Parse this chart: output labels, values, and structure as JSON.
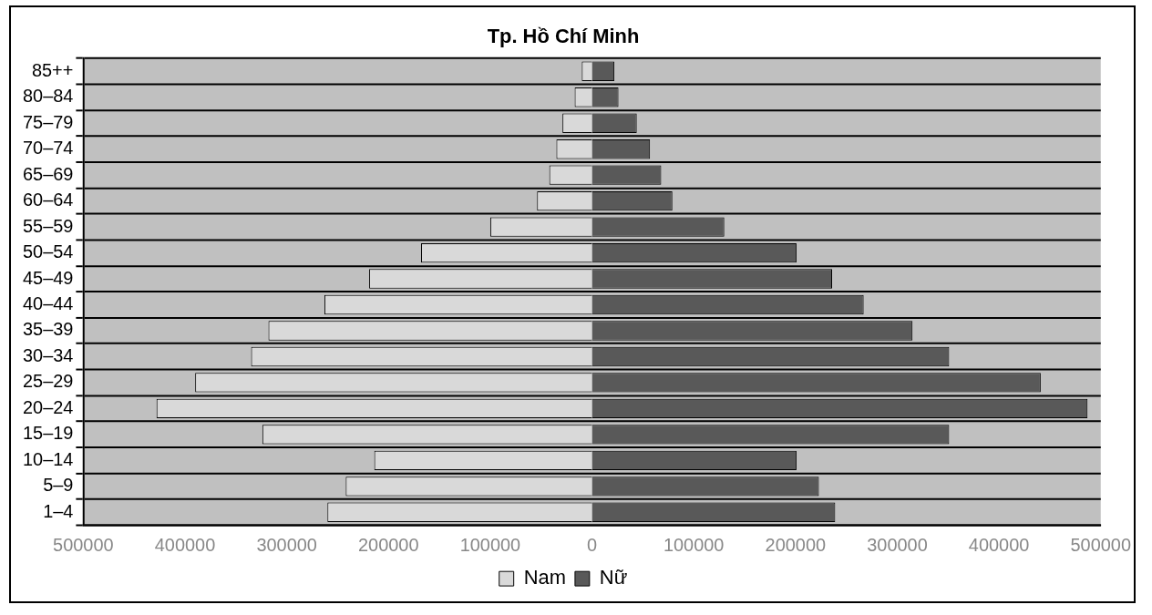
{
  "chart_data": {
    "type": "bar",
    "orientation": "horizontal",
    "stacked": true,
    "title": "Tp. Hồ Chí Minh",
    "categories": [
      "85++",
      "80–84",
      "75–79",
      "70–74",
      "65–69",
      "60–64",
      "55–59",
      "50–54",
      "45–49",
      "40–44",
      "35–39",
      "30–34",
      "25–29",
      "20–24",
      "15–19",
      "10–14",
      "5–9",
      "1–4"
    ],
    "series": [
      {
        "name": "Nam",
        "color": "#d9d9d9",
        "values": [
          -10000,
          -17000,
          -29000,
          -35000,
          -42000,
          -54000,
          -100000,
          -168000,
          -219000,
          -263000,
          -318000,
          -335000,
          -390000,
          -428000,
          -324000,
          -214000,
          -242000,
          -260000
        ]
      },
      {
        "name": "Nữ",
        "color": "#595959",
        "values": [
          22000,
          26000,
          44000,
          57000,
          68000,
          79000,
          130000,
          201000,
          236000,
          267000,
          315000,
          351000,
          441000,
          487000,
          351000,
          201000,
          223000,
          239000
        ]
      }
    ],
    "xlim": [
      -500000,
      500000
    ],
    "xticks": [
      {
        "value": -500000,
        "label": "500000"
      },
      {
        "value": -400000,
        "label": "400000"
      },
      {
        "value": -300000,
        "label": "300000"
      },
      {
        "value": -200000,
        "label": "200000"
      },
      {
        "value": -100000,
        "label": "100000"
      },
      0,
      100000,
      200000,
      300000,
      400000,
      500000
    ],
    "grid": "y",
    "legend": "bottom"
  }
}
